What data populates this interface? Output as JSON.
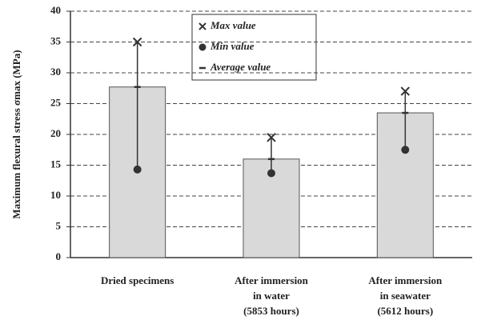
{
  "chart_data": {
    "type": "bar",
    "y_label": "Maximum flexural stress σmax (MPa)",
    "categories": [
      [
        "Dried specimens"
      ],
      [
        "After immersion",
        "in water",
        "(5853 hours)"
      ],
      [
        "After immersion",
        "in seawater",
        "(5612 hours)"
      ]
    ],
    "series": [
      {
        "name": "Max value",
        "color": "#333333",
        "values": [
          35,
          19.5,
          27
        ]
      },
      {
        "name": "Min value",
        "color": "#333333",
        "values": [
          14.3,
          13.7,
          17.5
        ]
      },
      {
        "name": "Average value",
        "color": "#333333",
        "values": [
          27.7,
          16,
          23.5
        ]
      }
    ],
    "color": "#d9d9d9",
    "ylim": [
      0,
      40
    ],
    "yticks": [
      0,
      5,
      10,
      15,
      20,
      25,
      30,
      35,
      40
    ],
    "grid": true
  }
}
